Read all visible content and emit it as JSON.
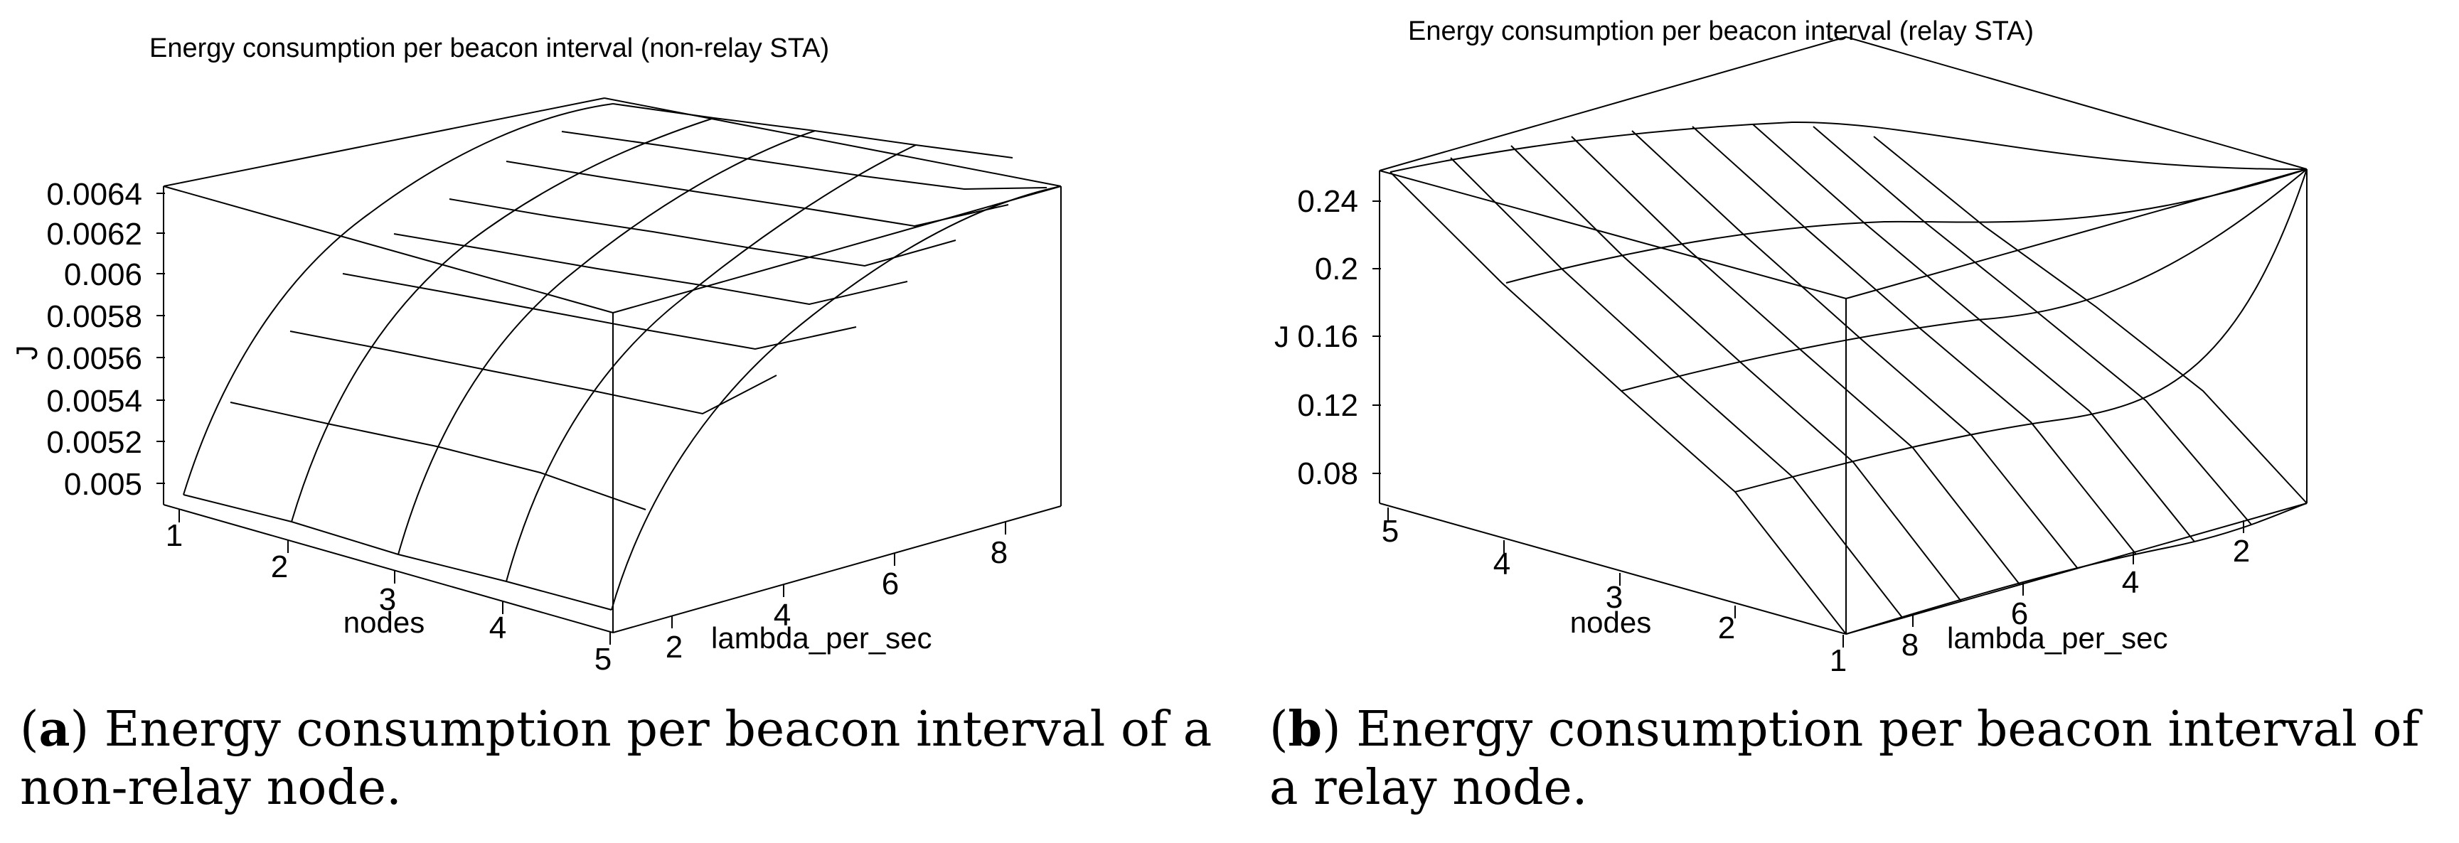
{
  "chart_data": [
    {
      "type": "surface3d",
      "title": "Energy consumption per beacon interval  (non-relay STA)",
      "zlabel": "J",
      "z_ticks": [
        "0.0064",
        "0.0062",
        "0.006",
        "0.0058",
        "0.0056",
        "0.0054",
        "0.0052",
        "0.005"
      ],
      "z_range": [
        0.0049,
        0.0064
      ],
      "xlabel": "nodes",
      "x_ticks": [
        "1",
        "2",
        "3",
        "4",
        "5"
      ],
      "ylabel": "lambda_per_sec",
      "y_ticks": [
        "2",
        "4",
        "6",
        "8"
      ],
      "grid": "wireframe",
      "caption_tag": "a",
      "caption_text": ") Energy consumption per beacon interval of a non-relay node."
    },
    {
      "type": "surface3d",
      "title": "Energy consumption per beacon interval  (relay STA)",
      "zlabel": "J",
      "z_ticks": [
        "0.24",
        "0.2",
        "0.16",
        "0.12",
        "0.08"
      ],
      "z_range": [
        0.06,
        0.26
      ],
      "xlabel": "nodes",
      "x_ticks": [
        "5",
        "4",
        "3",
        "2",
        "1"
      ],
      "ylabel": "lambda_per_sec",
      "y_ticks": [
        "2",
        "4",
        "6",
        "8"
      ],
      "grid": "wireframe",
      "caption_tag": "b",
      "caption_text": ") Energy consumption per beacon interval of a relay node."
    }
  ]
}
